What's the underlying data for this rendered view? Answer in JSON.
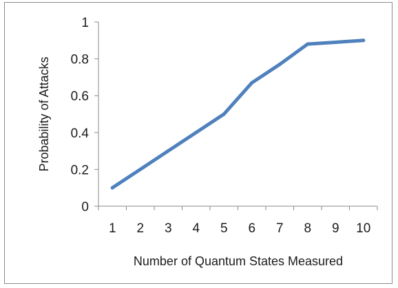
{
  "chart_data": {
    "type": "line",
    "title": "",
    "xlabel": "Number of Quantum  States Measured",
    "ylabel": "Probability of Attacks",
    "categories": [
      "1",
      "2",
      "3",
      "4",
      "5",
      "6",
      "7",
      "8",
      "9",
      "10"
    ],
    "series": [
      {
        "values": [
          0.1,
          0.2,
          0.3,
          0.4,
          0.5,
          0.67,
          0.77,
          0.88,
          0.89,
          0.9
        ]
      }
    ],
    "y_ticks": [
      "0",
      "0.2",
      "0.4",
      "0.6",
      "0.8",
      "1"
    ],
    "ylim": [
      0,
      1
    ],
    "grid": false,
    "legend": "none",
    "colors": {
      "line": "#4f81bd",
      "axis": "#8a8a8a"
    }
  }
}
